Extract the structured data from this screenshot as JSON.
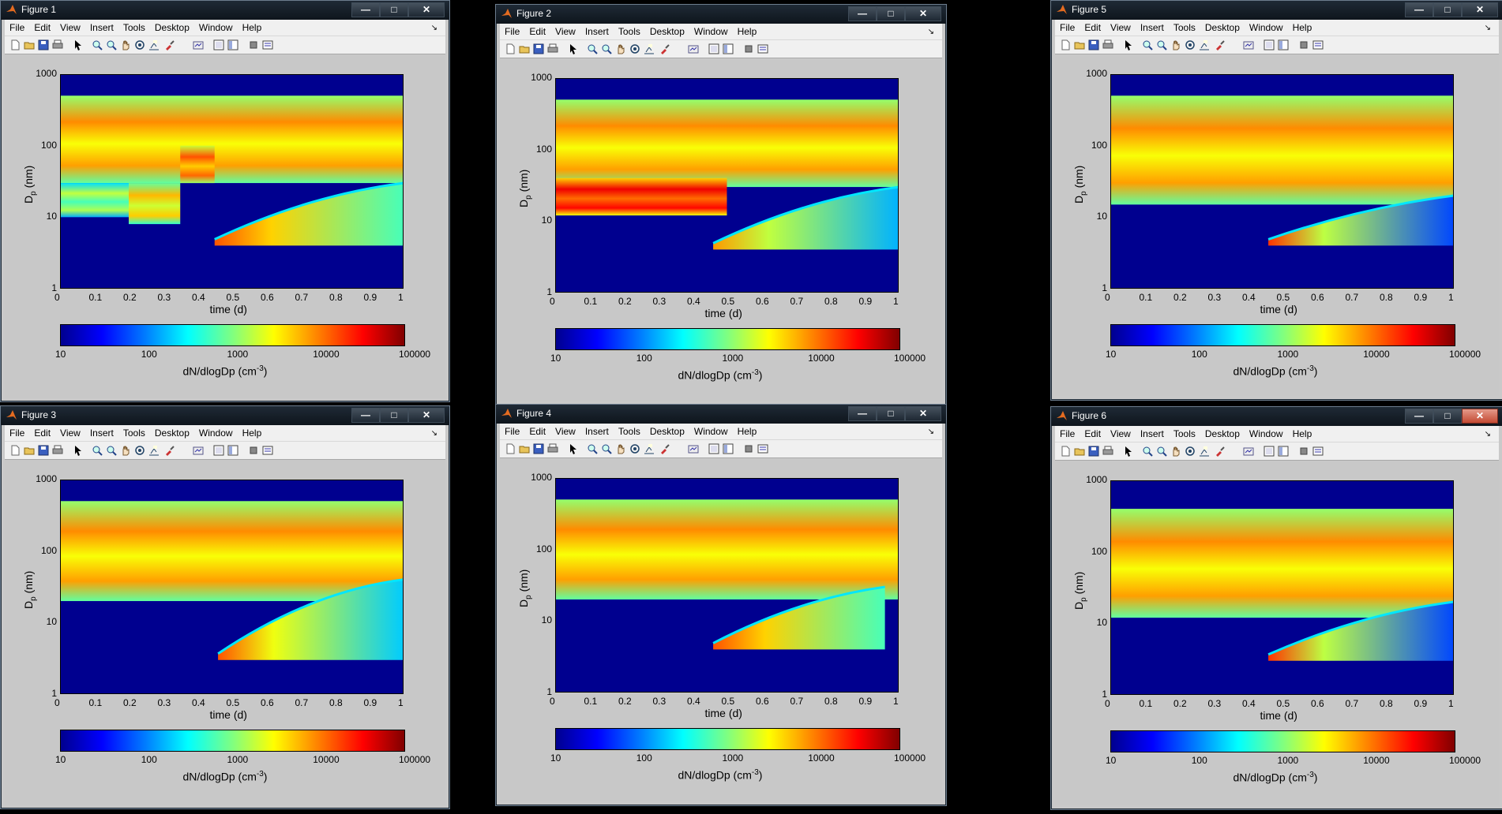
{
  "colors": {
    "chrome": "#0e151c",
    "figure_bg": "#c8c8c8",
    "menu_bg": "#f0f0f0",
    "plot_bg": "#00008f"
  },
  "menu_items": [
    "File",
    "Edit",
    "View",
    "Insert",
    "Tools",
    "Desktop",
    "Window",
    "Help"
  ],
  "toolbar_icons": [
    "new-file-icon",
    "open-icon",
    "save-icon",
    "print-icon",
    "pointer-icon",
    "zoom-in-icon",
    "zoom-out-icon",
    "pan-icon",
    "rotate-icon",
    "data-cursor-icon",
    "brush-icon",
    "link-icon",
    "plot-tools-hide-icon",
    "plot-tools-show-icon",
    "insert-colorbar-icon",
    "insert-legend-icon"
  ],
  "axes_common": {
    "xlabel": "time (d)",
    "ylabel": "D",
    "ylabel_sub": "p",
    "ylabel_unit": " (nm)",
    "xticks": [
      "0",
      "0.1",
      "0.2",
      "0.3",
      "0.4",
      "0.5",
      "0.6",
      "0.7",
      "0.8",
      "0.9",
      "1"
    ],
    "yticks": [
      "1000",
      "100",
      "10",
      "1"
    ],
    "cbar_ticks": [
      "10",
      "100",
      "1000",
      "10000",
      "100000"
    ],
    "cbar_label": "dN/dlogDp (cm",
    "cbar_label_sup": "-3",
    "cbar_label_end": ")"
  },
  "windows": [
    {
      "title": "Figure 1",
      "close_style": "normal"
    },
    {
      "title": "Figure 2",
      "close_style": "normal"
    },
    {
      "title": "Figure 5",
      "close_style": "normal"
    },
    {
      "title": "Figure 3",
      "close_style": "normal"
    },
    {
      "title": "Figure 4",
      "close_style": "normal"
    },
    {
      "title": "Figure 6",
      "close_style": "red"
    }
  ],
  "chart_data": [
    {
      "type": "heatmap",
      "figure": "Figure 1",
      "x_range": [
        0,
        1
      ],
      "y_range": [
        1,
        1000
      ],
      "y_scale": "log",
      "colorbar_range": [
        10,
        100000
      ],
      "colorbar_scale": "log",
      "features": [
        {
          "kind": "band",
          "x": [
            0,
            1
          ],
          "y": [
            30,
            500
          ],
          "level": 3000
        },
        {
          "kind": "band",
          "x": [
            0,
            0.2
          ],
          "y": [
            10,
            30
          ],
          "level": 600
        },
        {
          "kind": "band",
          "x": [
            0.2,
            0.35
          ],
          "y": [
            8,
            30
          ],
          "level": 2000
        },
        {
          "kind": "band",
          "x": [
            0.35,
            0.45
          ],
          "y": [
            30,
            100
          ],
          "level": 5000
        },
        {
          "kind": "nucleation",
          "x": [
            0.45,
            1
          ],
          "y": [
            4,
            30
          ],
          "level": 1500,
          "peak": 15000
        }
      ]
    },
    {
      "type": "heatmap",
      "figure": "Figure 2",
      "x_range": [
        0,
        1
      ],
      "y_range": [
        1,
        1000
      ],
      "y_scale": "log",
      "colorbar_range": [
        10,
        100000
      ],
      "colorbar_scale": "log",
      "features": [
        {
          "kind": "band",
          "x": [
            0,
            1
          ],
          "y": [
            30,
            500
          ],
          "level": 3000
        },
        {
          "kind": "band",
          "x": [
            0,
            0.5
          ],
          "y": [
            12,
            40
          ],
          "level": 12000
        },
        {
          "kind": "nucleation",
          "x": [
            0.46,
            1
          ],
          "y": [
            4,
            30
          ],
          "level": 400,
          "peak": 8000
        }
      ]
    },
    {
      "type": "heatmap",
      "figure": "Figure 5",
      "x_range": [
        0,
        1
      ],
      "y_range": [
        1,
        1000
      ],
      "y_scale": "log",
      "colorbar_range": [
        10,
        100000
      ],
      "colorbar_scale": "log",
      "features": [
        {
          "kind": "band",
          "x": [
            0,
            1
          ],
          "y": [
            15,
            500
          ],
          "level": 3000
        },
        {
          "kind": "nucleation",
          "x": [
            0.46,
            1
          ],
          "y": [
            4,
            20
          ],
          "level": 150,
          "peak": 20000
        }
      ]
    },
    {
      "type": "heatmap",
      "figure": "Figure 3",
      "x_range": [
        0,
        1
      ],
      "y_range": [
        1,
        1000
      ],
      "y_scale": "log",
      "colorbar_range": [
        10,
        100000
      ],
      "colorbar_scale": "log",
      "features": [
        {
          "kind": "band",
          "x": [
            0,
            1
          ],
          "y": [
            20,
            500
          ],
          "level": 3000
        },
        {
          "kind": "nucleation",
          "x": [
            0.46,
            1
          ],
          "y": [
            3,
            40
          ],
          "level": 500,
          "peak": 15000
        }
      ]
    },
    {
      "type": "heatmap",
      "figure": "Figure 4",
      "x_range": [
        0,
        1
      ],
      "y_range": [
        1,
        1000
      ],
      "y_scale": "log",
      "colorbar_range": [
        10,
        100000
      ],
      "colorbar_scale": "log",
      "features": [
        {
          "kind": "band",
          "x": [
            0,
            1
          ],
          "y": [
            20,
            500
          ],
          "level": 3000
        },
        {
          "kind": "nucleation",
          "x": [
            0.46,
            0.96
          ],
          "y": [
            4,
            30
          ],
          "level": 1500,
          "peak": 15000
        }
      ]
    },
    {
      "type": "heatmap",
      "figure": "Figure 6",
      "x_range": [
        0,
        1
      ],
      "y_range": [
        1,
        1000
      ],
      "y_scale": "log",
      "colorbar_range": [
        10,
        100000
      ],
      "colorbar_scale": "log",
      "features": [
        {
          "kind": "band",
          "x": [
            0,
            1
          ],
          "y": [
            12,
            400
          ],
          "level": 3000
        },
        {
          "kind": "nucleation",
          "x": [
            0.46,
            1
          ],
          "y": [
            3,
            20
          ],
          "level": 150,
          "peak": 20000
        }
      ]
    }
  ]
}
